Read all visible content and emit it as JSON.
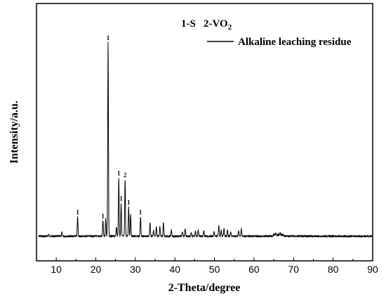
{
  "chart_data": {
    "type": "line",
    "xlabel": "2-Theta/degree",
    "ylabel": "Intensity/a.u.",
    "xlim": [
      5,
      90
    ],
    "x_ticks": [
      "10",
      "20",
      "30",
      "40",
      "50",
      "60",
      "70",
      "80",
      "90"
    ],
    "y_ticks_shown": false,
    "phase_key": {
      "label_1": "1-S",
      "label_2_prefix": "2-VO",
      "label_2_subscript": "2"
    },
    "legend": {
      "position": "top-right",
      "entries": [
        "Alkaline leaching residue"
      ]
    },
    "series": [
      {
        "name": "Alkaline leaching residue",
        "color": "#000000",
        "baseline": 1,
        "peaks": [
          {
            "x": 8.1,
            "y": 2
          },
          {
            "x": 11.4,
            "y": 3
          },
          {
            "x": 15.4,
            "y": 11
          },
          {
            "x": 21.8,
            "y": 9
          },
          {
            "x": 22.5,
            "y": 10
          },
          {
            "x": 23.1,
            "y": 100
          },
          {
            "x": 25.2,
            "y": 6
          },
          {
            "x": 25.8,
            "y": 31
          },
          {
            "x": 26.4,
            "y": 18
          },
          {
            "x": 27.4,
            "y": 30
          },
          {
            "x": 28.3,
            "y": 16
          },
          {
            "x": 28.8,
            "y": 12
          },
          {
            "x": 31.3,
            "y": 11
          },
          {
            "x": 33.7,
            "y": 8
          },
          {
            "x": 34.6,
            "y": 4
          },
          {
            "x": 35.3,
            "y": 6
          },
          {
            "x": 36.2,
            "y": 6
          },
          {
            "x": 37.1,
            "y": 8
          },
          {
            "x": 39.1,
            "y": 4
          },
          {
            "x": 41.9,
            "y": 3
          },
          {
            "x": 42.6,
            "y": 5
          },
          {
            "x": 44.1,
            "y": 3
          },
          {
            "x": 45.2,
            "y": 4
          },
          {
            "x": 45.9,
            "y": 4
          },
          {
            "x": 47.3,
            "y": 4
          },
          {
            "x": 49.9,
            "y": 3
          },
          {
            "x": 51.1,
            "y": 7
          },
          {
            "x": 51.7,
            "y": 4
          },
          {
            "x": 52.4,
            "y": 5
          },
          {
            "x": 53.3,
            "y": 4
          },
          {
            "x": 54.1,
            "y": 3
          },
          {
            "x": 56.1,
            "y": 4
          },
          {
            "x": 56.8,
            "y": 5
          },
          {
            "x": 65.5,
            "y": 2
          },
          {
            "x": 66.6,
            "y": 2
          }
        ]
      }
    ],
    "peak_labels": [
      {
        "x": 15.4,
        "y": 11,
        "text": "1"
      },
      {
        "x": 21.8,
        "y": 9,
        "text": "1"
      },
      {
        "x": 23.1,
        "y": 100,
        "text": "1"
      },
      {
        "x": 25.8,
        "y": 31,
        "text": "1"
      },
      {
        "x": 26.4,
        "y": 18,
        "text": "1"
      },
      {
        "x": 27.4,
        "y": 30,
        "text": "2"
      },
      {
        "x": 28.3,
        "y": 16,
        "text": "1"
      },
      {
        "x": 31.3,
        "y": 11,
        "text": "1"
      }
    ]
  }
}
